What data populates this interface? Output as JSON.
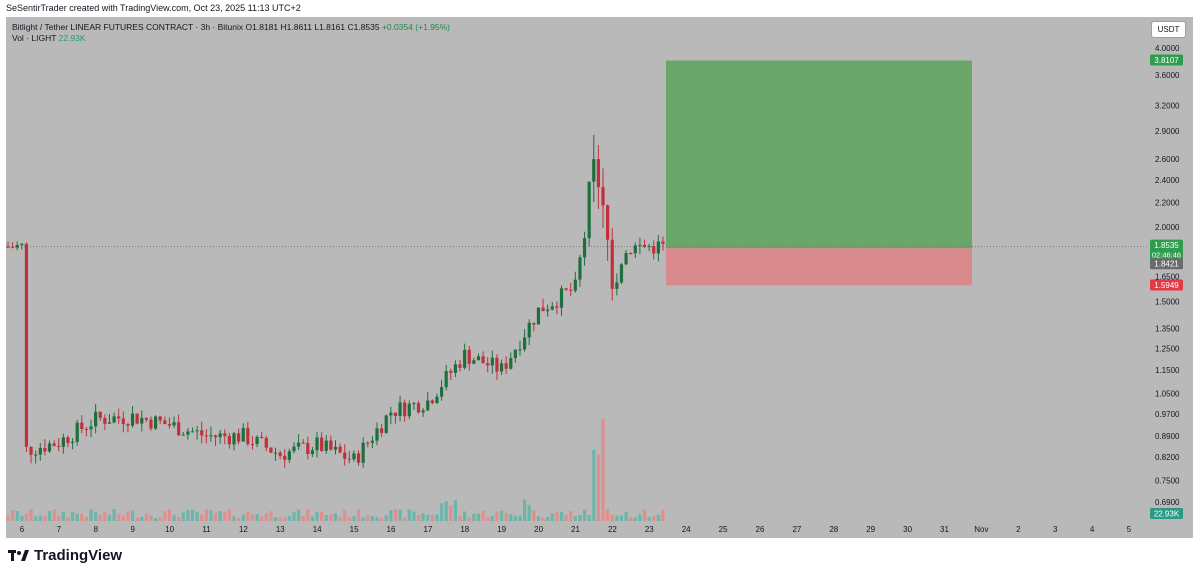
{
  "header": {
    "created_by": "SeSentirTrader created with TradingView.com, Oct 23, 2025 11:13 UTC+2"
  },
  "legend": {
    "symbol": "Bitlight / Tether LINEAR FUTURES CONTRACT · 3h · Bitunix",
    "ohlc": "O1.8181 H1.8611 L1.8161 C1.8535",
    "change": "+0.0354 (+1.95%)",
    "vol_label": "Vol · LIGHT",
    "vol_value": "22.93K"
  },
  "currency_button": "USDT",
  "brand": {
    "name": "TradingView"
  },
  "colors": {
    "up": "#1f6f3e",
    "down": "#c0303c",
    "target_zone": "#6aa56a",
    "stop_zone": "#d98a8c",
    "vol_up": "#6bb6a8",
    "vol_down": "#e08e8e",
    "target_badge": "#2e9e4e",
    "stop_badge": "#e53945",
    "price_badge": "#2e9e4e",
    "entry_badge": "#6b6b6b"
  },
  "chart_data": {
    "type": "candlestick",
    "y_scale": "log",
    "y_ticks": [
      "4.0000",
      "3.6000",
      "3.2000",
      "2.9000",
      "2.6000",
      "2.4000",
      "2.2000",
      "2.0000",
      "1.6500",
      "1.5000",
      "1.3500",
      "1.2500",
      "1.1500",
      "1.0500",
      "0.9700",
      "0.8900",
      "0.8200",
      "0.7500",
      "0.6900"
    ],
    "x_ticks": [
      "6",
      "7",
      "8",
      "9",
      "10",
      "11",
      "12",
      "13",
      "14",
      "15",
      "16",
      "17",
      "18",
      "19",
      "20",
      "21",
      "22",
      "23",
      "24",
      "25",
      "26",
      "27",
      "28",
      "29",
      "30",
      "31",
      "Nov",
      "2",
      "3",
      "4",
      "5"
    ],
    "last_price": {
      "value": "1.8535",
      "countdown": "02:46:46"
    },
    "entry_price": "1.8421",
    "target_price": "3.8107",
    "stop_price": "1.5949",
    "volume_last": "22.93K",
    "daily_path": [
      {
        "day": "6",
        "close": 0.84
      },
      {
        "day": "7",
        "close": 0.87
      },
      {
        "day": "8",
        "close": 0.95
      },
      {
        "day": "9",
        "close": 0.96
      },
      {
        "day": "10",
        "close": 0.93
      },
      {
        "day": "11",
        "close": 0.89
      },
      {
        "day": "12",
        "close": 0.89
      },
      {
        "day": "13",
        "close": 0.83
      },
      {
        "day": "14",
        "close": 0.86
      },
      {
        "day": "15",
        "close": 0.81
      },
      {
        "day": "16",
        "close": 0.98
      },
      {
        "day": "17",
        "close": 1.02
      },
      {
        "day": "18",
        "close": 1.22
      },
      {
        "day": "19",
        "close": 1.15
      },
      {
        "day": "20",
        "close": 1.45
      },
      {
        "day": "21",
        "close": 1.58
      },
      {
        "day": "21.5",
        "close": 2.45
      },
      {
        "day": "22",
        "close": 1.7
      },
      {
        "day": "22.5",
        "close": 1.85
      },
      {
        "day": "23",
        "close": 1.8535
      }
    ]
  }
}
